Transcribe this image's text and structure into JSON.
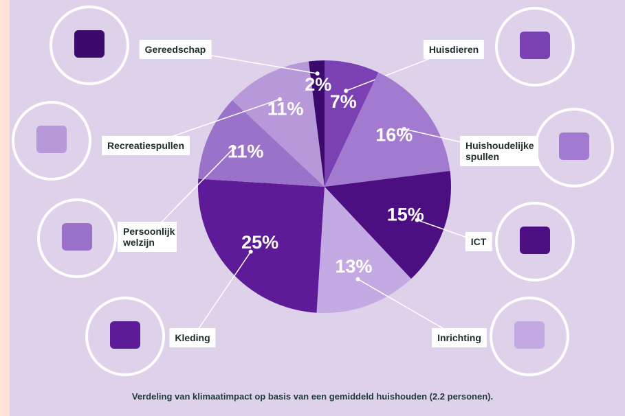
{
  "chart_data": {
    "type": "pie",
    "categories": [
      "Huisdieren",
      "Huishoudelijke spullen",
      "ICT",
      "Inrichting",
      "Kleding",
      "Persoonlijk welzijn",
      "Recreatiespullen",
      "Gereedschap"
    ],
    "values": [
      7,
      16,
      15,
      13,
      25,
      11,
      11,
      2
    ],
    "value_labels": [
      "7%",
      "16%",
      "15%",
      "13%",
      "25%",
      "11%",
      "11%",
      "2%"
    ],
    "colors": [
      "#7b40b2",
      "#a27bd0",
      "#4b0f82",
      "#c4aae2",
      "#5e1b98",
      "#9b72c9",
      "#b798d8",
      "#3c0a6c"
    ],
    "caption": "Verdeling van klimaatimpact op basis van een gemiddeld huishouden (2.2 personen)."
  }
}
